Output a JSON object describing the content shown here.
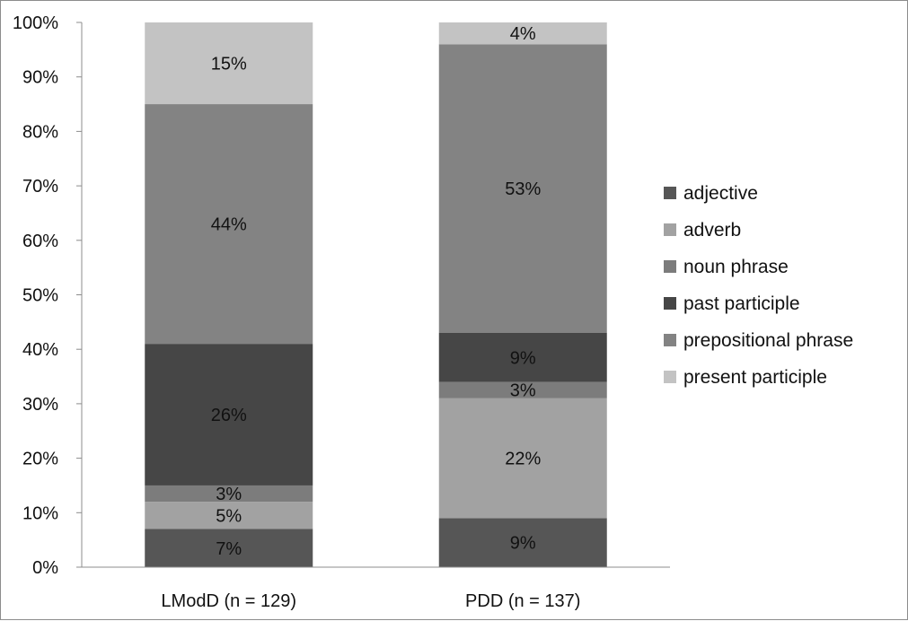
{
  "chart_data": {
    "type": "bar",
    "stacked": true,
    "percent": true,
    "ylim": [
      0,
      100
    ],
    "y_ticks": [
      "0%",
      "10%",
      "20%",
      "30%",
      "40%",
      "50%",
      "60%",
      "70%",
      "80%",
      "90%",
      "100%"
    ],
    "grid": false,
    "legend_position": "right",
    "categories": [
      "LModD (n = 129)",
      "PDD (n = 137)"
    ],
    "series": [
      {
        "name": "adjective",
        "values": [
          7,
          9
        ],
        "labels": [
          "7%",
          "9%"
        ],
        "color": "#565656"
      },
      {
        "name": "adverb",
        "values": [
          5,
          22
        ],
        "labels": [
          "5%",
          "22%"
        ],
        "color": "#a2a2a2"
      },
      {
        "name": "noun phrase",
        "values": [
          3,
          3
        ],
        "labels": [
          "3%",
          "3%"
        ],
        "color": "#7c7c7c"
      },
      {
        "name": "past participle",
        "values": [
          26,
          9
        ],
        "labels": [
          "26%",
          "9%"
        ],
        "color": "#464646"
      },
      {
        "name": "prepositional phrase",
        "values": [
          44,
          53
        ],
        "labels": [
          "44%",
          "53%"
        ],
        "color": "#838383"
      },
      {
        "name": "present participle",
        "values": [
          15,
          4
        ],
        "labels": [
          "15%",
          "4%"
        ],
        "color": "#c3c3c3"
      }
    ]
  }
}
